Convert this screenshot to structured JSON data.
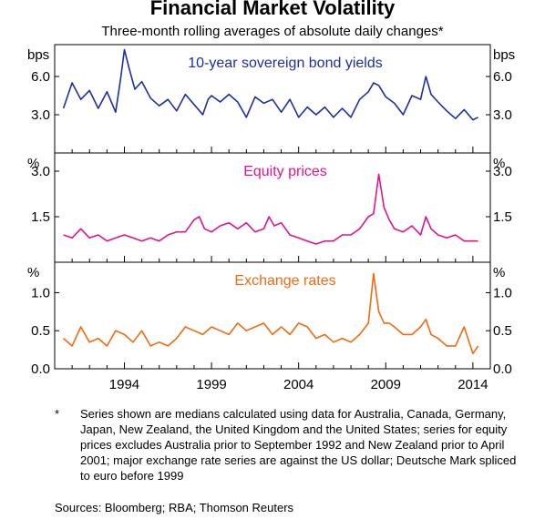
{
  "title": "Financial Market Volatility",
  "subtitle": "Three-month rolling averages of absolute daily changes*",
  "footnote_marker": "*",
  "footnote": "Series shown are medians calculated using data for Australia, Canada, Germany, Japan, New Zealand, the United Kingdom and the United States; series for equity prices excludes Australia prior to September 1992 and New Zealand prior to April 2001; major exchange rate series are against the US dollar; Deutsche Mark spliced to euro before 1999",
  "sources": "Sources:  Bloomberg; RBA; Thomson Reuters",
  "chart_data": [
    {
      "type": "line",
      "title": "10-year sovereign bond yields",
      "unit": "bps",
      "color": "#1f2f9f",
      "ylim": [
        0,
        8.5
      ],
      "yticks": [
        "6.0",
        "3.0"
      ],
      "ytick_values": [
        6,
        3
      ],
      "x": [
        1990.5,
        1991,
        1991.5,
        1992,
        1992.5,
        1993,
        1993.5,
        1993.8,
        1994,
        1994.3,
        1994.6,
        1995,
        1995.5,
        1996,
        1996.5,
        1997,
        1997.5,
        1998,
        1998.5,
        1998.8,
        1999,
        1999.5,
        2000,
        2000.5,
        2001,
        2001.5,
        2002,
        2002.5,
        2003,
        2003.5,
        2004,
        2004.5,
        2005,
        2005.5,
        2006,
        2006.5,
        2007,
        2007.5,
        2008,
        2008.3,
        2008.6,
        2009,
        2009.5,
        2010,
        2010.5,
        2011,
        2011.3,
        2011.6,
        2012,
        2012.5,
        2013,
        2013.5,
        2014,
        2014.3
      ],
      "y": [
        3.5,
        5.5,
        4.2,
        4.9,
        3.5,
        4.8,
        3.2,
        6.0,
        8.1,
        6.5,
        5.0,
        5.6,
        4.3,
        3.7,
        4.2,
        3.3,
        4.6,
        3.8,
        3.0,
        4.2,
        4.5,
        4.0,
        4.6,
        4.0,
        2.8,
        4.4,
        3.9,
        4.2,
        3.2,
        4.2,
        2.8,
        3.6,
        3.0,
        3.6,
        2.8,
        3.5,
        2.8,
        4.2,
        4.8,
        5.5,
        5.3,
        4.4,
        3.9,
        3.0,
        4.5,
        4.2,
        6.0,
        4.6,
        4.0,
        3.3,
        2.7,
        3.4,
        2.6,
        2.8
      ]
    },
    {
      "type": "line",
      "title": "Equity prices",
      "unit": "%",
      "color": "#e0148c",
      "ylim": [
        0,
        3.6
      ],
      "yticks": [
        "3.0",
        "1.5"
      ],
      "ytick_values": [
        3,
        1.5
      ],
      "x": [
        1990.5,
        1991,
        1991.5,
        1992,
        1992.5,
        1993,
        1993.5,
        1994,
        1994.5,
        1995,
        1995.5,
        1996,
        1996.5,
        1997,
        1997.5,
        1998,
        1998.3,
        1998.6,
        1999,
        1999.5,
        2000,
        2000.5,
        2001,
        2001.5,
        2002,
        2002.3,
        2002.6,
        2003,
        2003.5,
        2004,
        2004.5,
        2005,
        2005.5,
        2006,
        2006.5,
        2007,
        2007.5,
        2008,
        2008.3,
        2008.6,
        2008.9,
        2009.2,
        2009.5,
        2010,
        2010.5,
        2011,
        2011.3,
        2011.6,
        2012,
        2012.5,
        2013,
        2013.5,
        2014,
        2014.3
      ],
      "y": [
        0.9,
        0.8,
        1.1,
        0.8,
        0.9,
        0.7,
        0.8,
        0.9,
        0.8,
        0.7,
        0.8,
        0.7,
        0.9,
        1.0,
        1.0,
        1.4,
        1.5,
        1.1,
        1.0,
        1.2,
        1.3,
        1.1,
        1.3,
        1.0,
        1.1,
        1.5,
        1.2,
        1.3,
        0.9,
        0.8,
        0.7,
        0.6,
        0.7,
        0.7,
        0.9,
        0.9,
        1.1,
        1.5,
        1.6,
        2.9,
        1.8,
        1.4,
        1.1,
        1.0,
        1.2,
        0.9,
        1.5,
        1.1,
        0.9,
        0.8,
        0.9,
        0.7,
        0.7,
        0.7
      ]
    },
    {
      "type": "line",
      "title": "Exchange rates",
      "unit": "%",
      "color": "#f26a10",
      "ylim": [
        0,
        1.4
      ],
      "yticks": [
        "1.0",
        "0.5",
        "0.0"
      ],
      "ytick_values": [
        1,
        0.5,
        0
      ],
      "x": [
        1990.5,
        1991,
        1991.5,
        1992,
        1992.5,
        1993,
        1993.5,
        1994,
        1994.5,
        1995,
        1995.5,
        1996,
        1996.5,
        1997,
        1997.5,
        1998,
        1998.5,
        1999,
        1999.5,
        2000,
        2000.5,
        2001,
        2001.5,
        2002,
        2002.5,
        2003,
        2003.5,
        2004,
        2004.5,
        2005,
        2005.5,
        2006,
        2006.5,
        2007,
        2007.5,
        2008,
        2008.3,
        2008.6,
        2008.9,
        2009.2,
        2009.5,
        2010,
        2010.5,
        2011,
        2011.3,
        2011.6,
        2012,
        2012.5,
        2013,
        2013.5,
        2014,
        2014.3
      ],
      "y": [
        0.4,
        0.3,
        0.55,
        0.35,
        0.4,
        0.3,
        0.5,
        0.45,
        0.35,
        0.5,
        0.3,
        0.35,
        0.3,
        0.4,
        0.55,
        0.5,
        0.45,
        0.55,
        0.5,
        0.45,
        0.6,
        0.5,
        0.55,
        0.6,
        0.45,
        0.55,
        0.45,
        0.6,
        0.55,
        0.4,
        0.45,
        0.35,
        0.4,
        0.35,
        0.45,
        0.6,
        1.25,
        0.75,
        0.6,
        0.6,
        0.55,
        0.45,
        0.45,
        0.55,
        0.65,
        0.45,
        0.4,
        0.3,
        0.3,
        0.55,
        0.2,
        0.3
      ]
    }
  ],
  "x_axis": {
    "xlim": [
      1990,
      2015
    ],
    "ticks": [
      "1994",
      "1999",
      "2004",
      "2009",
      "2014"
    ],
    "tick_values": [
      1994,
      1999,
      2004,
      2009,
      2014
    ]
  }
}
